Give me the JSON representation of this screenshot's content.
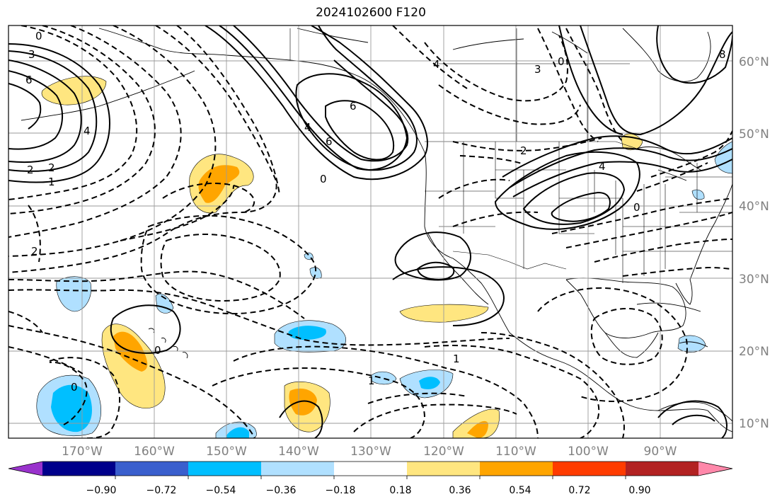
{
  "title": "2024102600 F120",
  "map": {
    "lat_labels": [
      "60°N",
      "50°N",
      "40°N",
      "30°N",
      "20°N",
      "10°N"
    ],
    "lon_labels": [
      "170°W",
      "160°W",
      "150°W",
      "140°W",
      "130°W",
      "120°W",
      "110°W",
      "100°W",
      "90°W"
    ],
    "contour_labels": [
      "0",
      "3",
      "6",
      "4",
      "2",
      "1",
      "2",
      "6",
      "4",
      "0",
      "8",
      "0",
      "4",
      "3",
      "2",
      "6",
      "4",
      "0",
      "1",
      "2",
      "0",
      "0",
      "1"
    ],
    "gridlines": true,
    "coastlines": true
  },
  "colorbar": {
    "ticks": [
      "−0.90",
      "−0.72",
      "−0.54",
      "−0.36",
      "−0.18",
      "0.18",
      "0.36",
      "0.54",
      "0.72",
      "0.90"
    ],
    "colors": [
      "#9932cc",
      "#00008b",
      "#3a5fcd",
      "#00bfff",
      "#b0e0ff",
      "#ffffff",
      "#ffe680",
      "#ffa500",
      "#ff3c00",
      "#b22222",
      "#ff88aa"
    ]
  }
}
